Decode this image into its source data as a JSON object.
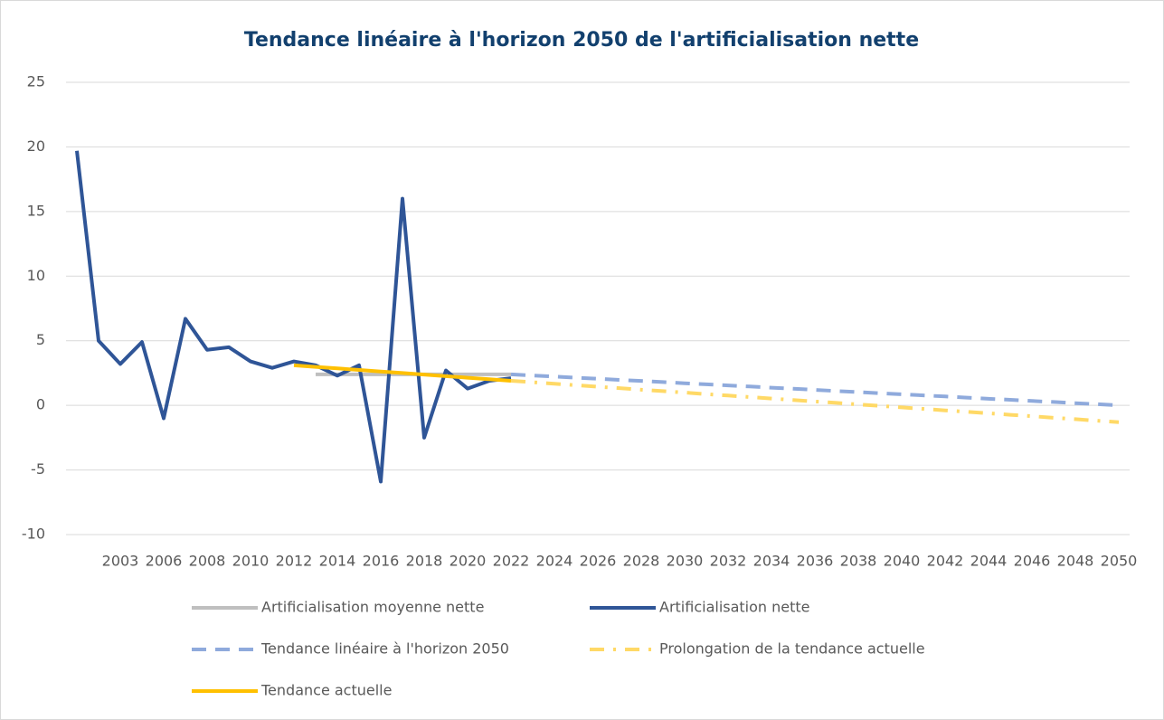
{
  "chart_data": {
    "type": "line",
    "title": "Tendance linéaire à l'horizon 2050 de l'artificialisation nette",
    "categories": [
      null,
      null,
      "2003",
      null,
      "2006",
      null,
      "2008",
      null,
      "2010",
      null,
      "2012",
      null,
      "2014",
      null,
      "2016",
      null,
      "2018",
      null,
      "2020",
      null,
      "2022",
      null,
      "2024",
      null,
      "2026",
      null,
      "2028",
      null,
      "2030",
      null,
      "2032",
      null,
      "2034",
      null,
      "2036",
      null,
      "2038",
      null,
      "2040",
      null,
      "2042",
      null,
      "2044",
      null,
      "2046",
      null,
      "2048",
      null,
      "2050"
    ],
    "ylim": [
      -10,
      25
    ],
    "yticks": [
      -10,
      -5,
      0,
      5,
      10,
      15,
      20,
      25
    ],
    "grid": true,
    "legend": "bottom",
    "series": [
      {
        "name": "Artificialisation moyenne nette",
        "color": "#bfbfbf",
        "dash": "solid",
        "values": [
          null,
          null,
          null,
          null,
          null,
          null,
          null,
          null,
          null,
          null,
          null,
          2.4,
          2.4,
          2.4,
          2.4,
          2.4,
          2.4,
          2.4,
          2.4,
          2.4,
          2.4,
          null,
          null,
          null,
          null,
          null,
          null,
          null,
          null,
          null,
          null,
          null,
          null,
          null,
          null,
          null,
          null,
          null,
          null,
          null,
          null,
          null,
          null,
          null,
          null,
          null,
          null,
          null,
          null
        ]
      },
      {
        "name": "Artificialisation nette",
        "color": "#2f5597",
        "dash": "solid",
        "values": [
          19.7,
          5.0,
          3.2,
          4.9,
          -1.0,
          6.7,
          4.3,
          4.5,
          3.4,
          2.9,
          3.4,
          3.1,
          2.3,
          3.1,
          -5.9,
          16.0,
          -2.5,
          2.7,
          1.3,
          1.9,
          2.1,
          null,
          null,
          null,
          null,
          null,
          null,
          null,
          null,
          null,
          null,
          null,
          null,
          null,
          null,
          null,
          null,
          null,
          null,
          null,
          null,
          null,
          null,
          null,
          null,
          null,
          null,
          null,
          null
        ]
      },
      {
        "name": "Tendance linéaire à l'horizon 2050",
        "color": "#8faadc",
        "dash": "dash",
        "values": [
          null,
          null,
          null,
          null,
          null,
          null,
          null,
          null,
          null,
          null,
          null,
          null,
          null,
          null,
          null,
          null,
          null,
          null,
          null,
          null,
          2.4,
          2.31,
          2.23,
          2.14,
          2.06,
          1.97,
          1.89,
          1.8,
          1.71,
          1.63,
          1.54,
          1.46,
          1.37,
          1.29,
          1.2,
          1.11,
          1.03,
          0.94,
          0.86,
          0.77,
          0.69,
          0.6,
          0.51,
          0.43,
          0.34,
          0.26,
          0.17,
          0.09,
          0
        ]
      },
      {
        "name": "Prolongation de la tendance actuelle",
        "color": "#ffd966",
        "dash": "dashdot",
        "values": [
          null,
          null,
          null,
          null,
          null,
          null,
          null,
          null,
          null,
          null,
          null,
          null,
          null,
          null,
          null,
          null,
          null,
          null,
          null,
          null,
          1.9,
          1.79,
          1.67,
          1.56,
          1.44,
          1.33,
          1.21,
          1.1,
          0.99,
          0.87,
          0.76,
          0.64,
          0.53,
          0.41,
          0.3,
          0.19,
          0.07,
          -0.04,
          -0.16,
          -0.27,
          -0.39,
          -0.5,
          -0.61,
          -0.73,
          -0.84,
          -0.96,
          -1.07,
          -1.19,
          -1.3
        ]
      },
      {
        "name": "Tendance actuelle",
        "color": "#ffc000",
        "dash": "solid",
        "values": [
          null,
          null,
          null,
          null,
          null,
          null,
          null,
          null,
          null,
          null,
          3.1,
          2.98,
          2.86,
          2.74,
          2.62,
          2.5,
          2.38,
          2.26,
          2.14,
          2.02,
          1.9,
          null,
          null,
          null,
          null,
          null,
          null,
          null,
          null,
          null,
          null,
          null,
          null,
          null,
          null,
          null,
          null,
          null,
          null,
          null,
          null,
          null,
          null,
          null,
          null,
          null,
          null,
          null,
          null
        ]
      }
    ]
  }
}
